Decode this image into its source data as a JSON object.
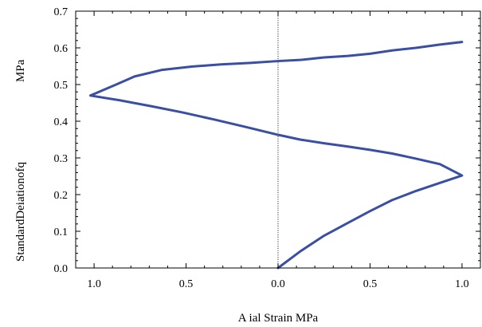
{
  "chart_data": {
    "type": "line",
    "title": "",
    "xlabel": "A ial Strain  MPa",
    "ylabel_lines": [
      "StandardDeiationofq",
      "MPa"
    ],
    "xlim": [
      -1.1,
      1.1
    ],
    "ylim": [
      0,
      0.7
    ],
    "x_ticks": [
      {
        "value": -1.0,
        "label": "1.0"
      },
      {
        "value": -0.5,
        "label": "0.5"
      },
      {
        "value": 0.0,
        "label": "0.0"
      },
      {
        "value": 0.5,
        "label": "0.5"
      },
      {
        "value": 1.0,
        "label": "1.0"
      }
    ],
    "y_ticks": [
      {
        "value": 0.0,
        "label": "0.0"
      },
      {
        "value": 0.1,
        "label": "0.1"
      },
      {
        "value": 0.2,
        "label": "0.2"
      },
      {
        "value": 0.3,
        "label": "0.3"
      },
      {
        "value": 0.4,
        "label": "0.4"
      },
      {
        "value": 0.5,
        "label": "0.5"
      },
      {
        "value": 0.6,
        "label": "0.6"
      },
      {
        "value": 0.7,
        "label": "0.7"
      }
    ],
    "zero_line": {
      "x": 0.0,
      "style": "dotted"
    },
    "grid": false,
    "series": [
      {
        "color": "#3a4fa3",
        "points": [
          [
            0.0,
            0.0
          ],
          [
            0.12,
            0.045
          ],
          [
            0.25,
            0.088
          ],
          [
            0.38,
            0.123
          ],
          [
            0.5,
            0.155
          ],
          [
            0.62,
            0.185
          ],
          [
            0.75,
            0.21
          ],
          [
            0.88,
            0.232
          ],
          [
            1.0,
            0.252
          ],
          [
            0.88,
            0.283
          ],
          [
            0.75,
            0.298
          ],
          [
            0.62,
            0.312
          ],
          [
            0.5,
            0.322
          ],
          [
            0.38,
            0.331
          ],
          [
            0.25,
            0.34
          ],
          [
            0.12,
            0.35
          ],
          [
            0.0,
            0.363
          ],
          [
            -0.18,
            0.385
          ],
          [
            -0.35,
            0.405
          ],
          [
            -0.52,
            0.424
          ],
          [
            -0.69,
            0.441
          ],
          [
            -0.86,
            0.457
          ],
          [
            -1.02,
            0.47
          ],
          [
            -0.88,
            0.5
          ],
          [
            -0.78,
            0.522
          ],
          [
            -0.63,
            0.54
          ],
          [
            -0.47,
            0.549
          ],
          [
            -0.31,
            0.555
          ],
          [
            -0.15,
            0.559
          ],
          [
            0.0,
            0.564
          ],
          [
            0.12,
            0.567
          ],
          [
            0.25,
            0.574
          ],
          [
            0.38,
            0.578
          ],
          [
            0.5,
            0.584
          ],
          [
            0.62,
            0.593
          ],
          [
            0.75,
            0.6
          ],
          [
            0.88,
            0.609
          ],
          [
            1.0,
            0.616
          ]
        ]
      }
    ]
  }
}
